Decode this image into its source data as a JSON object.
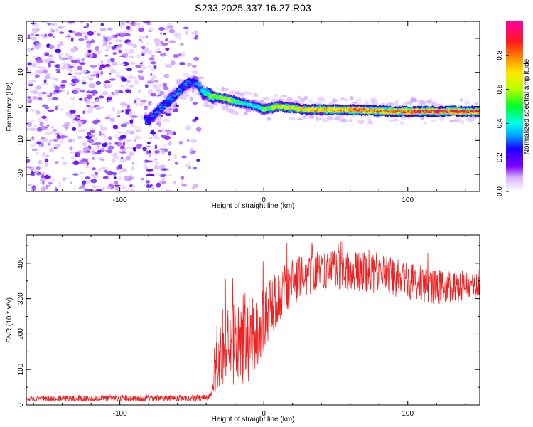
{
  "title": "S233.2025.337.16.27.R03",
  "chart_data": [
    {
      "type": "heatmap",
      "panel": "spectrogram",
      "xlabel": "Height of straight line (km)",
      "ylabel": "Frequency (Hz)",
      "xlim": [
        -165,
        150
      ],
      "ylim": [
        -25,
        25
      ],
      "xticks": [
        -100,
        0,
        100
      ],
      "yticks": [
        -20,
        -10,
        0,
        10,
        20
      ],
      "xtick_labels": [
        "-100",
        "0",
        "100"
      ],
      "ytick_labels": [
        "-20",
        "-10",
        "0",
        "10",
        "20"
      ],
      "colorbar": {
        "label": "Normalized spectral amplitude",
        "range": [
          0,
          1
        ],
        "ticks": [
          0.0,
          0.2,
          0.4,
          0.6,
          0.8
        ],
        "tick_labels": [
          "0.0",
          "0.2",
          "0.4",
          "0.6",
          "0.8"
        ],
        "colors": [
          "#ffffff",
          "#d8b4ff",
          "#7b00ff",
          "#1a00ff",
          "#00a8ff",
          "#00ffe8",
          "#00ff28",
          "#b8ff00",
          "#ffe800",
          "#ff9000",
          "#ff1a1a",
          "#ff00a0"
        ]
      },
      "ridge": {
        "x": [
          -80,
          -70,
          -60,
          -52,
          -47,
          -42,
          -35,
          -25,
          -15,
          -5,
          0,
          10,
          30,
          60,
          90,
          110,
          150
        ],
        "freq": [
          -4,
          0,
          4,
          7,
          7,
          4,
          3,
          2,
          1,
          0,
          -1,
          0,
          -1,
          -1,
          -1.5,
          -1.5,
          -1.5
        ],
        "amplitude": [
          0.3,
          0.32,
          0.35,
          0.3,
          0.3,
          0.45,
          0.6,
          0.65,
          0.5,
          0.42,
          0.55,
          0.7,
          0.72,
          0.8,
          0.85,
          0.9,
          0.9
        ]
      },
      "noise_region": {
        "x": [
          -165,
          -50
        ],
        "amplitude": [
          0.05,
          0.25
        ]
      }
    },
    {
      "type": "line",
      "panel": "snr",
      "xlabel": "Height of straight line (km)",
      "ylabel": "SNR (10 * v/v)",
      "xlim": [
        -165,
        150
      ],
      "ylim": [
        0,
        480
      ],
      "xticks": [
        -100,
        0,
        100
      ],
      "yticks": [
        0,
        100,
        200,
        300,
        400
      ],
      "xtick_labels": [
        "-100",
        "0",
        "100"
      ],
      "ytick_labels": [
        "0",
        "100",
        "200",
        "300",
        "400"
      ],
      "color": "#ee2222",
      "envelope": {
        "x": [
          -165,
          -45,
          -37,
          -33,
          -25,
          -15,
          -5,
          5,
          15,
          30,
          45,
          60,
          80,
          100,
          120,
          150
        ],
        "mean": [
          18,
          20,
          22,
          130,
          170,
          180,
          200,
          280,
          330,
          370,
          380,
          380,
          370,
          350,
          330,
          340
        ],
        "spread": [
          8,
          10,
          10,
          100,
          110,
          130,
          110,
          80,
          70,
          60,
          55,
          55,
          60,
          55,
          50,
          40
        ]
      }
    }
  ]
}
